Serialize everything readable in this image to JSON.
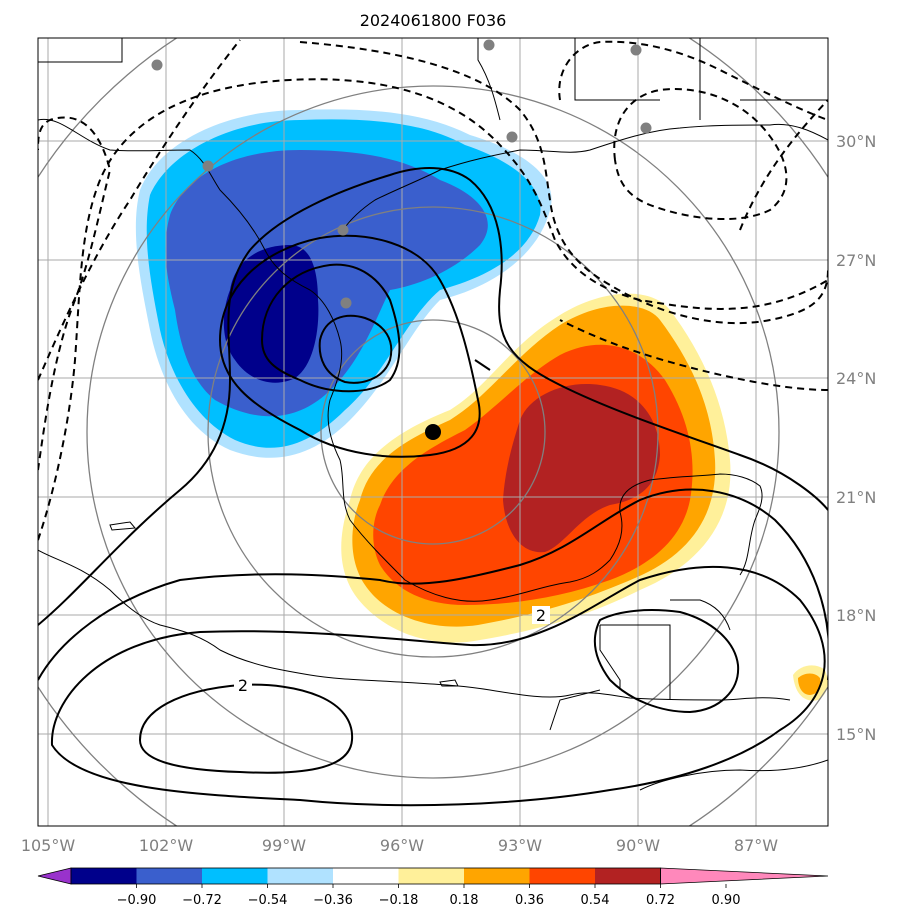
{
  "title": "2024061800 F036",
  "longitude_labels": [
    "105°W",
    "102°W",
    "99°W",
    "96°W",
    "93°W",
    "90°W",
    "87°W"
  ],
  "latitude_labels": [
    "30°N",
    "27°N",
    "24°N",
    "21°N",
    "18°N",
    "15°N"
  ],
  "colorbar": {
    "tick_labels": [
      "−0.90",
      "−0.72",
      "−0.54",
      "−0.36",
      "−0.18",
      "0.18",
      "0.36",
      "0.54",
      "0.72",
      "0.90"
    ],
    "colors": [
      "#9932cc",
      "#00008b",
      "#3a5fcd",
      "#00bfff",
      "#b0e2ff",
      "#ffffff",
      "#fff09a",
      "#ffa500",
      "#ff4500",
      "#b22222",
      "#ff88bb"
    ]
  },
  "contour_labels": [
    "2",
    "2"
  ],
  "storm_center": {
    "lon": -95.1,
    "lat": 22.6
  },
  "colors": {
    "grid": "#aaaaaa",
    "range_rings": "#808080",
    "contours": "#000000",
    "station_dots": "#808080"
  }
}
